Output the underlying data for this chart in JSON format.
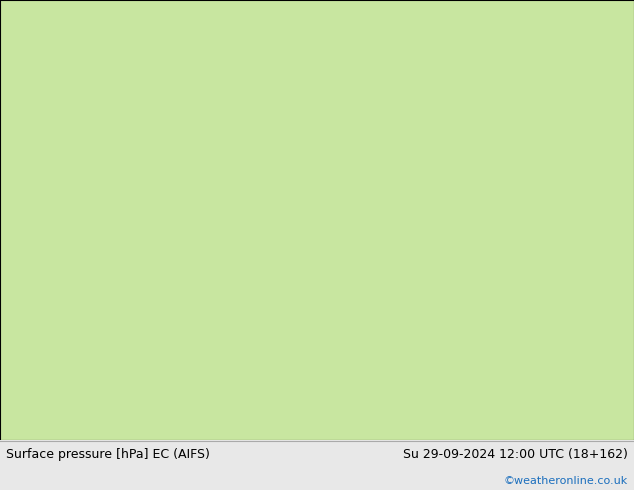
{
  "left_label": "Surface pressure [hPa] EC (AIFS)",
  "right_label": "Su 29-09-2024 12:00 UTC (18+162)",
  "copyright_label": "©weatheronline.co.uk",
  "copyright_color": "#1a6ebd",
  "label_fontsize": 9.0,
  "copyright_fontsize": 8.0,
  "title_color": "#000000",
  "land_color": "#c8e6a0",
  "ocean_color": "#d8e8f0",
  "border_color": "#999999",
  "coastline_color": "#888888",
  "bottom_bg": "#e8e8e8",
  "map_extent": [
    25,
    115,
    0,
    55
  ],
  "contour_lons": [
    -180,
    -170,
    -160,
    -150,
    -140,
    -130,
    -120,
    -110,
    -100,
    -90,
    -80,
    -70,
    -60,
    -50,
    -40,
    -30,
    -20,
    -10,
    0,
    10,
    20,
    30,
    40,
    50,
    60,
    70,
    80,
    90,
    100,
    110,
    120,
    130,
    140,
    150,
    160,
    170,
    180
  ],
  "contour_lats": [
    -90,
    -80,
    -70,
    -60,
    -50,
    -40,
    -30,
    -20,
    -10,
    0,
    10,
    20,
    30,
    40,
    50,
    60,
    70,
    80,
    90
  ],
  "figsize": [
    6.34,
    4.9
  ],
  "dpi": 100
}
